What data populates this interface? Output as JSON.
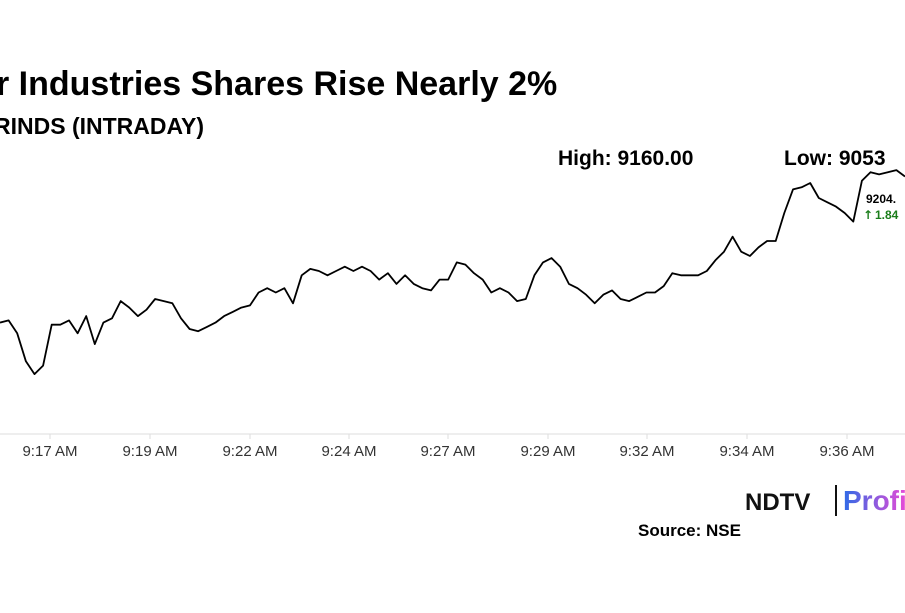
{
  "chart_data": {
    "type": "line",
    "title": "r Industries Shares Rise Nearly 2%",
    "subtitle": "RINDS (INTRADAY)",
    "high_text": "High: 9160.00",
    "low_text": "Low: 9053",
    "last_price": "9204.",
    "change_text": "1.84",
    "x_ticks": [
      "9:17 AM",
      "9:19 AM",
      "9:22 AM",
      "9:24 AM",
      "9:27 AM",
      "9:29 AM",
      "9:32 AM",
      "9:34 AM",
      "9:36 AM"
    ],
    "x": [
      "9:16:00",
      "9:16:12",
      "9:16:24",
      "9:16:36",
      "9:16:48",
      "9:17:00",
      "9:17:12",
      "9:17:24",
      "9:17:36",
      "9:17:48",
      "9:18:00",
      "9:18:12",
      "9:18:24",
      "9:18:36",
      "9:18:48",
      "9:19:00",
      "9:19:12",
      "9:19:24",
      "9:19:36",
      "9:19:48",
      "9:20:00",
      "9:20:12",
      "9:20:24",
      "9:20:36",
      "9:20:48",
      "9:21:00",
      "9:21:12",
      "9:21:24",
      "9:21:36",
      "9:21:48",
      "9:22:00",
      "9:22:12",
      "9:22:24",
      "9:22:36",
      "9:22:48",
      "9:23:00",
      "9:23:12",
      "9:23:24",
      "9:23:36",
      "9:23:48",
      "9:24:00",
      "9:24:12",
      "9:24:24",
      "9:24:36",
      "9:24:48",
      "9:25:00",
      "9:25:12",
      "9:25:24",
      "9:25:36",
      "9:25:48",
      "9:26:00",
      "9:26:12",
      "9:26:24",
      "9:26:36",
      "9:26:48",
      "9:27:00",
      "9:27:12",
      "9:27:24",
      "9:27:36",
      "9:27:48",
      "9:28:00",
      "9:28:12",
      "9:28:24",
      "9:28:36",
      "9:28:48",
      "9:29:00",
      "9:29:12",
      "9:29:24",
      "9:29:36",
      "9:29:48",
      "9:30:00",
      "9:30:12",
      "9:30:24",
      "9:30:36",
      "9:30:48",
      "9:31:00",
      "9:31:12",
      "9:31:24",
      "9:31:36",
      "9:31:48",
      "9:32:00",
      "9:32:12",
      "9:32:24",
      "9:32:36",
      "9:32:48",
      "9:33:00",
      "9:33:12",
      "9:33:24",
      "9:33:36",
      "9:33:48",
      "9:34:00",
      "9:34:12",
      "9:34:24",
      "9:34:36",
      "9:34:48",
      "9:35:00",
      "9:35:12",
      "9:35:24",
      "9:35:36",
      "9:35:48",
      "9:36:00",
      "9:36:12",
      "9:36:24",
      "9:36:36",
      "9:36:48",
      "9:37:00"
    ],
    "y": [
      9090,
      9091,
      9085,
      9072,
      9066,
      9070,
      9089,
      9089,
      9091,
      9085,
      9093,
      9080,
      9090,
      9092,
      9100,
      9097,
      9093,
      9096,
      9101,
      9100,
      9099,
      9092,
      9087,
      9086,
      9088,
      9090,
      9093,
      9095,
      9097,
      9098,
      9104,
      9106,
      9104,
      9106,
      9099,
      9112,
      9115,
      9114,
      9112,
      9114,
      9116,
      9114,
      9116,
      9114,
      9110,
      9113,
      9108,
      9112,
      9108,
      9106,
      9105,
      9110,
      9110,
      9118,
      9117,
      9113,
      9110,
      9104,
      9106,
      9104,
      9100,
      9101,
      9112,
      9118,
      9120,
      9116,
      9108,
      9106,
      9103,
      9099,
      9103,
      9105,
      9101,
      9100,
      9102,
      9104,
      9104,
      9107,
      9113,
      9112,
      9112,
      9112,
      9114,
      9119,
      9123,
      9130,
      9123,
      9121,
      9125,
      9128,
      9128,
      9141,
      9152,
      9153,
      9155,
      9148,
      9146,
      9144,
      9141,
      9137,
      9156,
      9160,
      9159,
      9160,
      9161,
      9158
    ],
    "ylim": [
      9040,
      9175
    ]
  },
  "branding": {
    "logo_ndtv": "NDTV",
    "logo_profit": "Profi",
    "source": "Source: NSE"
  },
  "colors": {
    "line": "#000000",
    "up": "#1a7d1a",
    "axis": "#dddddd",
    "profit_start": "#2f6be6",
    "profit_end": "#e94bd6"
  }
}
